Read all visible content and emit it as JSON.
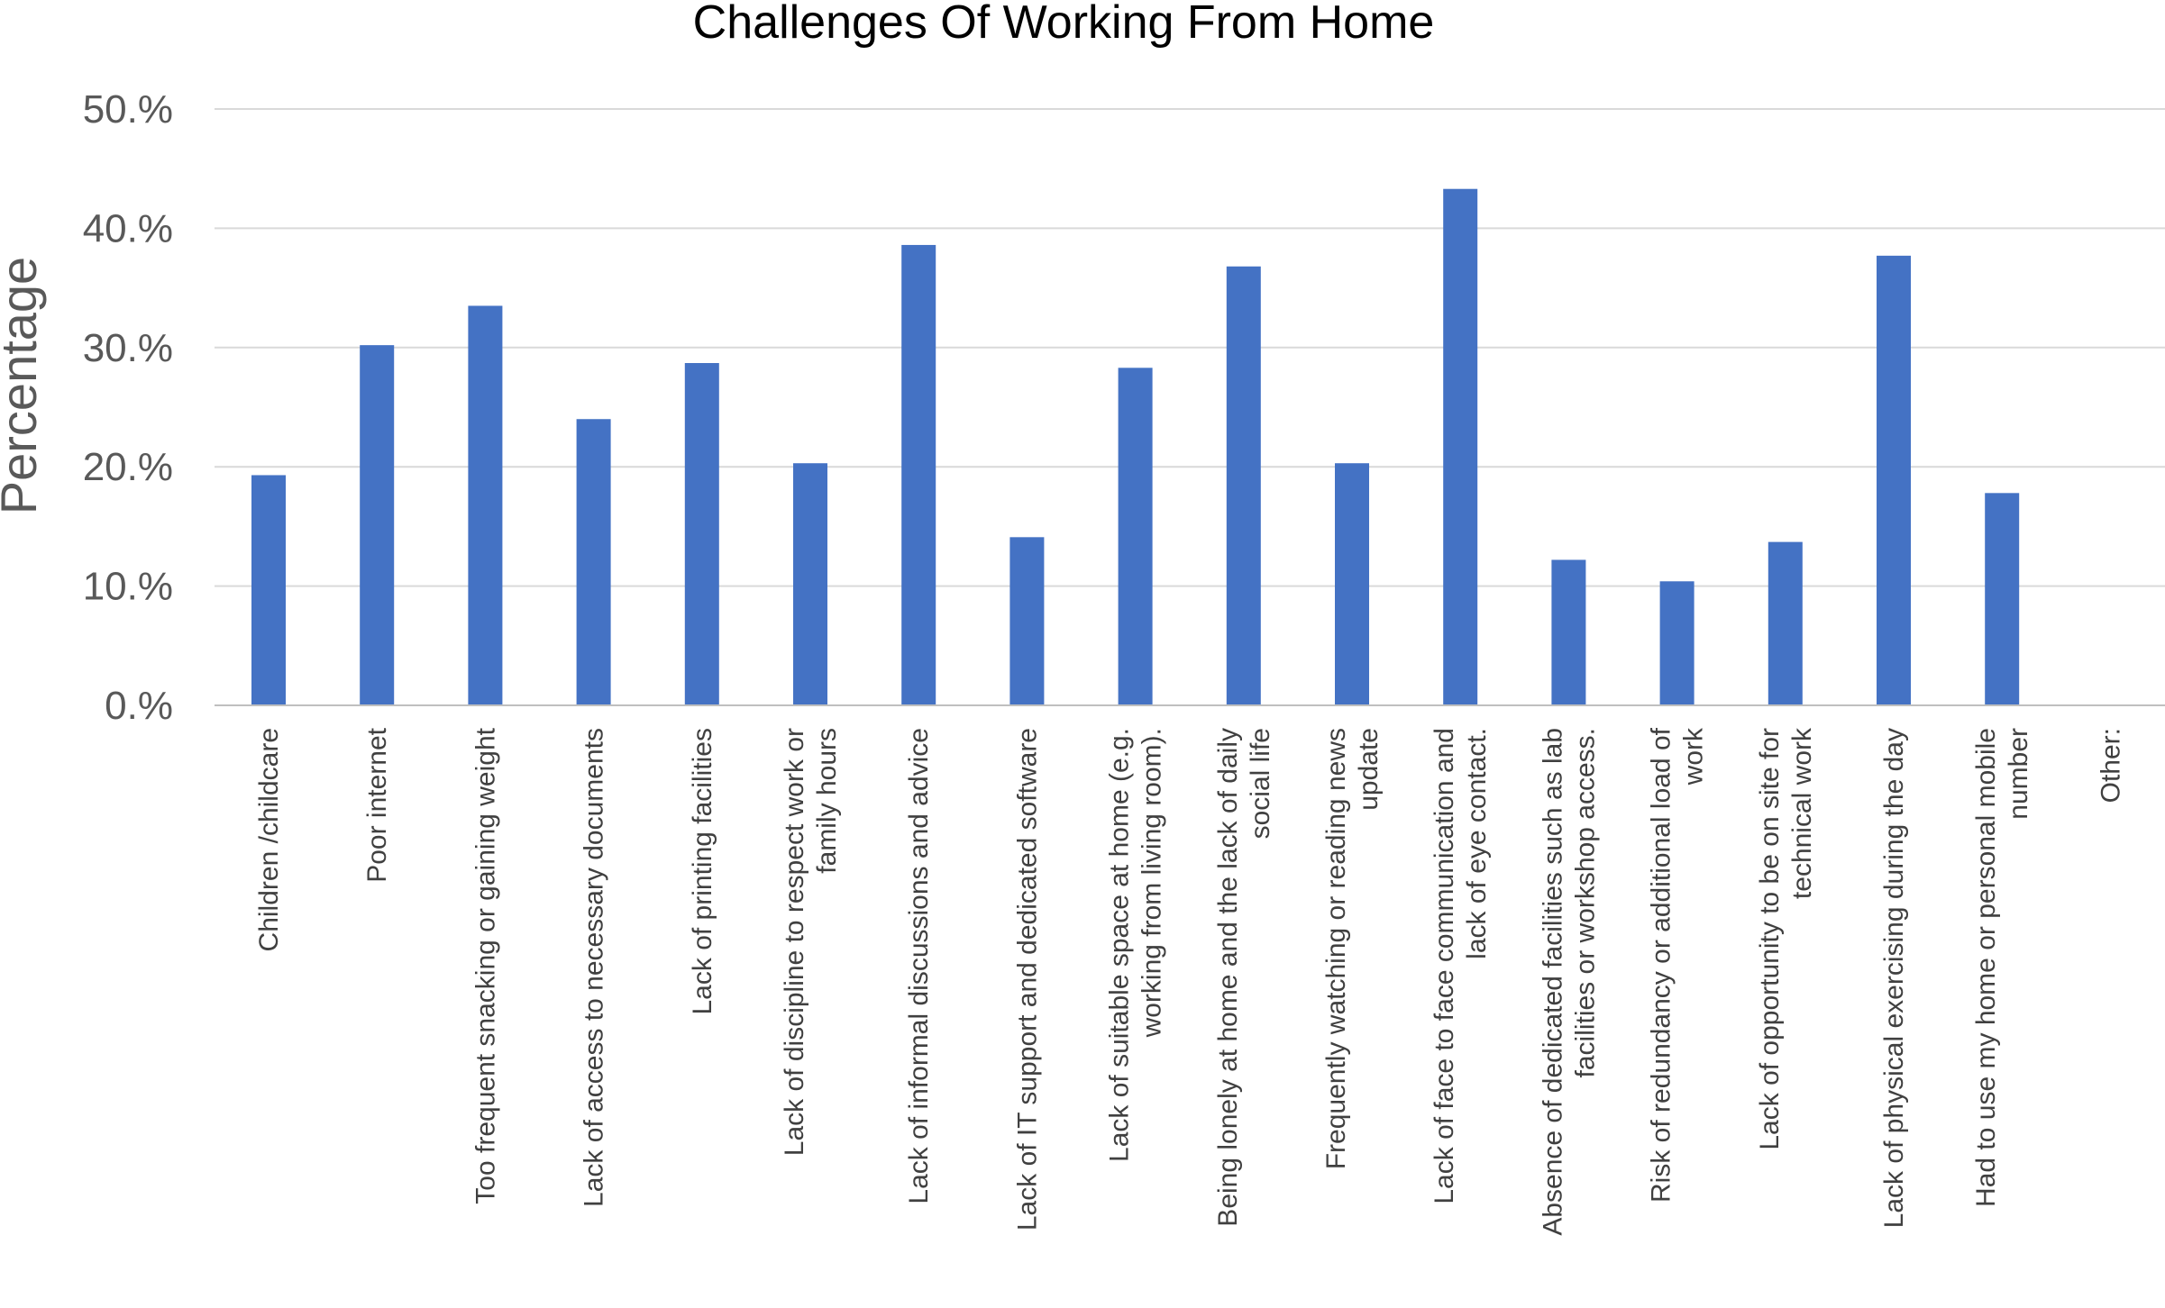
{
  "chart_data": {
    "type": "bar",
    "title": "Challenges Of Working From Home",
    "xlabel": "",
    "ylabel": "Percentage",
    "ylim": [
      0,
      50
    ],
    "yticks": [
      "0.%",
      "10.%",
      "20.%",
      "30.%",
      "40.%",
      "50.%"
    ],
    "grid": true,
    "legend": "none",
    "bar_color": "#4472C4",
    "categories": [
      [
        "Children /childcare"
      ],
      [
        "Poor internet"
      ],
      [
        "Too frequent snacking or gaining weight"
      ],
      [
        "Lack of access to necessary documents"
      ],
      [
        "Lack of printing facilities"
      ],
      [
        "Lack of discipline to respect work or",
        "family hours"
      ],
      [
        "Lack of informal discussions and advice"
      ],
      [
        "Lack of IT support and dedicated software"
      ],
      [
        "Lack of suitable space at home (e.g.",
        "working from living room)."
      ],
      [
        "Being lonely at home and the lack of daily",
        "social life"
      ],
      [
        "Frequently watching or reading news",
        "update"
      ],
      [
        "Lack of face to face communication and",
        "lack of eye contact."
      ],
      [
        "Absence of dedicated facilities such as lab",
        "facilities or workshop access."
      ],
      [
        "Risk of redundancy or additional load of",
        "work"
      ],
      [
        "Lack of opportunity to be on site for",
        "technical work"
      ],
      [
        "Lack of physical exercising during the day"
      ],
      [
        "Had to use my home or personal mobile",
        "number"
      ],
      [
        "Other:"
      ]
    ],
    "values": [
      19.3,
      30.2,
      33.5,
      24.0,
      28.7,
      20.3,
      38.6,
      14.1,
      28.3,
      36.8,
      20.3,
      43.3,
      12.2,
      10.4,
      13.7,
      37.7,
      17.8,
      0
    ]
  }
}
